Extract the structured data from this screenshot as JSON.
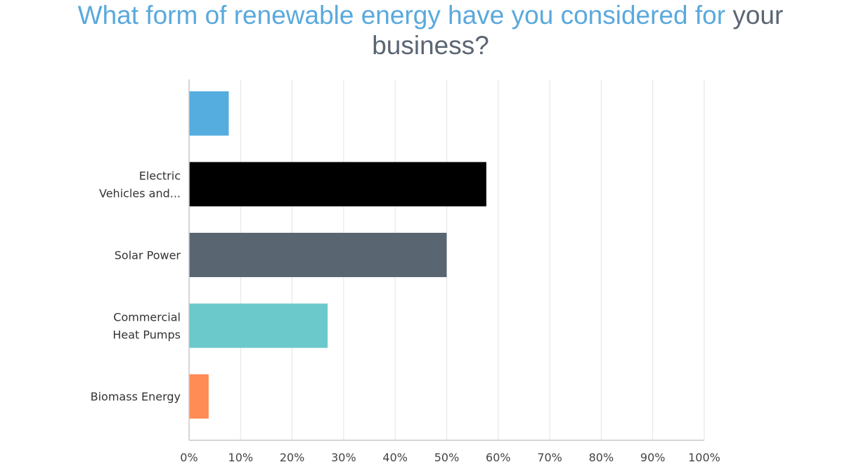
{
  "title": {
    "part_a": "What form of renewable energy have you considered for",
    "part_b": "your",
    "line2": "business?"
  },
  "chart_data": {
    "type": "bar",
    "orientation": "horizontal",
    "title": "What form of renewable energy have you considered for your business?",
    "categories": [
      {
        "label_lines": [],
        "value": 7.7,
        "color": "#55acdf"
      },
      {
        "label_lines": [
          "Electric",
          "Vehicles and..."
        ],
        "value": 57.7,
        "color": "#000000"
      },
      {
        "label_lines": [
          "Solar Power"
        ],
        "value": 50.0,
        "color": "#5a6572"
      },
      {
        "label_lines": [
          "Commercial",
          "Heat Pumps"
        ],
        "value": 26.9,
        "color": "#6bc8cb"
      },
      {
        "label_lines": [
          "Biomass Energy"
        ],
        "value": 3.8,
        "color": "#ff8b55"
      }
    ],
    "xlim": [
      0,
      100
    ],
    "x_ticks": [
      "0%",
      "10%",
      "20%",
      "30%",
      "40%",
      "50%",
      "60%",
      "70%",
      "80%",
      "90%",
      "100%"
    ],
    "grid": true,
    "legend": "none"
  }
}
